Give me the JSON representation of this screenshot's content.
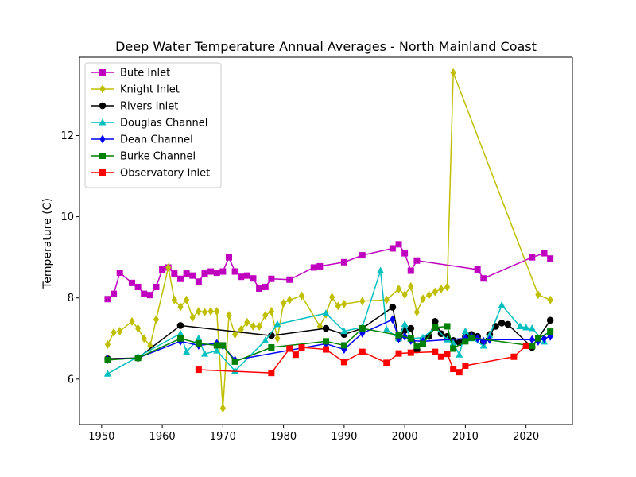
{
  "chart_data": {
    "type": "line",
    "title": "Deep Water Temperature Annual Averages - North Mainland Coast",
    "xlabel": "",
    "ylabel": "Temperature (C)",
    "xlim": [
      1946.35,
      2027.65
    ],
    "ylim": [
      4.88,
      13.93
    ],
    "xticks": [
      1950,
      1960,
      1970,
      1980,
      1990,
      2000,
      2010,
      2020
    ],
    "yticks": [
      6,
      8,
      10,
      12
    ],
    "grid": false,
    "legend_position": "top-left",
    "series": [
      {
        "name": "Bute Inlet",
        "color": "#bf00bf",
        "marker": "square",
        "x": [
          1951,
          1952,
          1953,
          1955,
          1956,
          1957,
          1958,
          1959,
          1960,
          1961,
          1962,
          1963,
          1964,
          1965,
          1966,
          1967,
          1968,
          1969,
          1970,
          1971,
          1972,
          1973,
          1974,
          1975,
          1976,
          1977,
          1978,
          1981,
          1985,
          1986,
          1990,
          1993,
          1998,
          1999,
          2000,
          2001,
          2002,
          2012,
          2013,
          2021,
          2023,
          2024
        ],
        "y": [
          7.97,
          8.1,
          8.62,
          8.37,
          8.27,
          8.1,
          8.07,
          8.27,
          8.7,
          8.75,
          8.6,
          8.47,
          8.6,
          8.55,
          8.4,
          8.6,
          8.65,
          8.62,
          8.65,
          9.0,
          8.65,
          8.52,
          8.55,
          8.48,
          8.23,
          8.27,
          8.47,
          8.45,
          8.75,
          8.78,
          8.88,
          9.05,
          9.22,
          9.32,
          9.1,
          8.67,
          8.92,
          8.7,
          8.48,
          9.0,
          9.1,
          8.97
        ]
      },
      {
        "name": "Knight Inlet",
        "color": "#bfbf00",
        "marker": "thin_diamond",
        "x": [
          1951,
          1952,
          1953,
          1955,
          1956,
          1957,
          1958,
          1959,
          1961,
          1962,
          1963,
          1964,
          1965,
          1966,
          1967,
          1968,
          1969,
          1970,
          1971,
          1972,
          1973,
          1974,
          1975,
          1976,
          1977,
          1978,
          1979,
          1980,
          1981,
          1983,
          1986,
          1987,
          1988,
          1989,
          1990,
          1993,
          1997,
          1999,
          2000,
          2001,
          2002,
          2003,
          2004,
          2005,
          2006,
          2007,
          2008,
          2022,
          2024
        ],
        "y": [
          6.85,
          7.15,
          7.18,
          7.42,
          7.25,
          7.0,
          6.82,
          7.47,
          8.75,
          7.95,
          7.78,
          7.95,
          7.52,
          7.67,
          7.65,
          7.67,
          7.67,
          5.28,
          7.57,
          7.1,
          7.22,
          7.4,
          7.3,
          7.3,
          7.57,
          7.67,
          7.0,
          7.87,
          7.95,
          8.05,
          7.3,
          7.6,
          8.02,
          7.8,
          7.85,
          7.92,
          7.95,
          8.22,
          8.08,
          8.28,
          7.65,
          7.98,
          8.07,
          8.15,
          8.22,
          8.27,
          13.55,
          8.08,
          7.95
        ]
      },
      {
        "name": "Rivers Inlet",
        "color": "#000000",
        "marker": "circle",
        "x": [
          1951,
          1956,
          1963,
          1978,
          1987,
          1990,
          1993,
          1998,
          1999,
          2000,
          2001,
          2002,
          2003,
          2004,
          2005,
          2006,
          2007,
          2008,
          2009,
          2010,
          2011,
          2012,
          2013,
          2014,
          2015,
          2016,
          2017,
          2021,
          2024
        ],
        "y": [
          6.5,
          6.52,
          7.32,
          7.07,
          7.25,
          7.1,
          7.25,
          7.77,
          7.0,
          7.2,
          7.25,
          6.72,
          6.97,
          7.05,
          7.42,
          7.12,
          7.05,
          6.95,
          6.9,
          7.05,
          7.1,
          7.05,
          6.92,
          7.1,
          7.3,
          7.38,
          7.35,
          6.78,
          7.45
        ]
      },
      {
        "name": "Douglas Channel",
        "color": "#00bfbf",
        "marker": "triangle",
        "x": [
          1951,
          1956,
          1963,
          1964,
          1966,
          1967,
          1969,
          1972,
          1977,
          1979,
          1987,
          1990,
          1993,
          1996,
          1997,
          1999,
          2000,
          2001,
          2003,
          2005,
          2007,
          2008,
          2009,
          2010,
          2011,
          2013,
          2014,
          2016,
          2019,
          2020,
          2021,
          2023
        ],
        "y": [
          6.13,
          6.55,
          7.12,
          6.67,
          7.0,
          6.62,
          6.7,
          6.2,
          6.95,
          7.35,
          7.62,
          7.18,
          7.28,
          8.67,
          7.22,
          7.0,
          7.35,
          7.0,
          7.02,
          7.27,
          6.97,
          6.88,
          6.6,
          7.18,
          7.0,
          6.82,
          7.08,
          7.82,
          7.3,
          7.27,
          7.25,
          6.92
        ]
      },
      {
        "name": "Dean Channel",
        "color": "#0000ff",
        "marker": "thin_diamond",
        "x": [
          1951,
          1956,
          1963,
          1966,
          1969,
          1970,
          1972,
          1987,
          1990,
          1993,
          1998,
          1999,
          2000,
          2001,
          2003,
          2010,
          2011,
          2012,
          2013,
          2014,
          2021,
          2022,
          2023,
          2024
        ],
        "y": [
          6.48,
          6.52,
          6.93,
          6.83,
          6.88,
          6.82,
          6.47,
          6.87,
          6.73,
          7.13,
          7.47,
          7.0,
          7.05,
          6.95,
          6.93,
          7.0,
          7.05,
          7.0,
          6.93,
          6.97,
          6.97,
          6.93,
          7.0,
          7.05
        ]
      },
      {
        "name": "Burke Channel",
        "color": "#008000",
        "marker": "square",
        "x": [
          1951,
          1956,
          1963,
          1966,
          1969,
          1970,
          1972,
          1978,
          1987,
          1990,
          1993,
          1999,
          2001,
          2002,
          2003,
          2005,
          2007,
          2008,
          2010,
          2011,
          2021,
          2022,
          2024
        ],
        "y": [
          6.47,
          6.52,
          7.0,
          6.88,
          6.83,
          6.83,
          6.43,
          6.78,
          6.93,
          6.83,
          7.25,
          7.08,
          7.0,
          6.82,
          6.87,
          7.27,
          7.3,
          6.75,
          6.93,
          7.02,
          6.82,
          7.0,
          7.17
        ]
      },
      {
        "name": "Observatory Inlet",
        "color": "#ff0000",
        "marker": "square",
        "x": [
          1966,
          1978,
          1981,
          1982,
          1983,
          1987,
          1990,
          1993,
          1997,
          1999,
          2001,
          2005,
          2006,
          2007,
          2008,
          2009,
          2010,
          2018,
          2020
        ],
        "y": [
          6.23,
          6.15,
          6.75,
          6.6,
          6.78,
          6.73,
          6.42,
          6.67,
          6.4,
          6.63,
          6.65,
          6.67,
          6.55,
          6.62,
          6.25,
          6.17,
          6.33,
          6.55,
          6.82
        ]
      }
    ]
  }
}
